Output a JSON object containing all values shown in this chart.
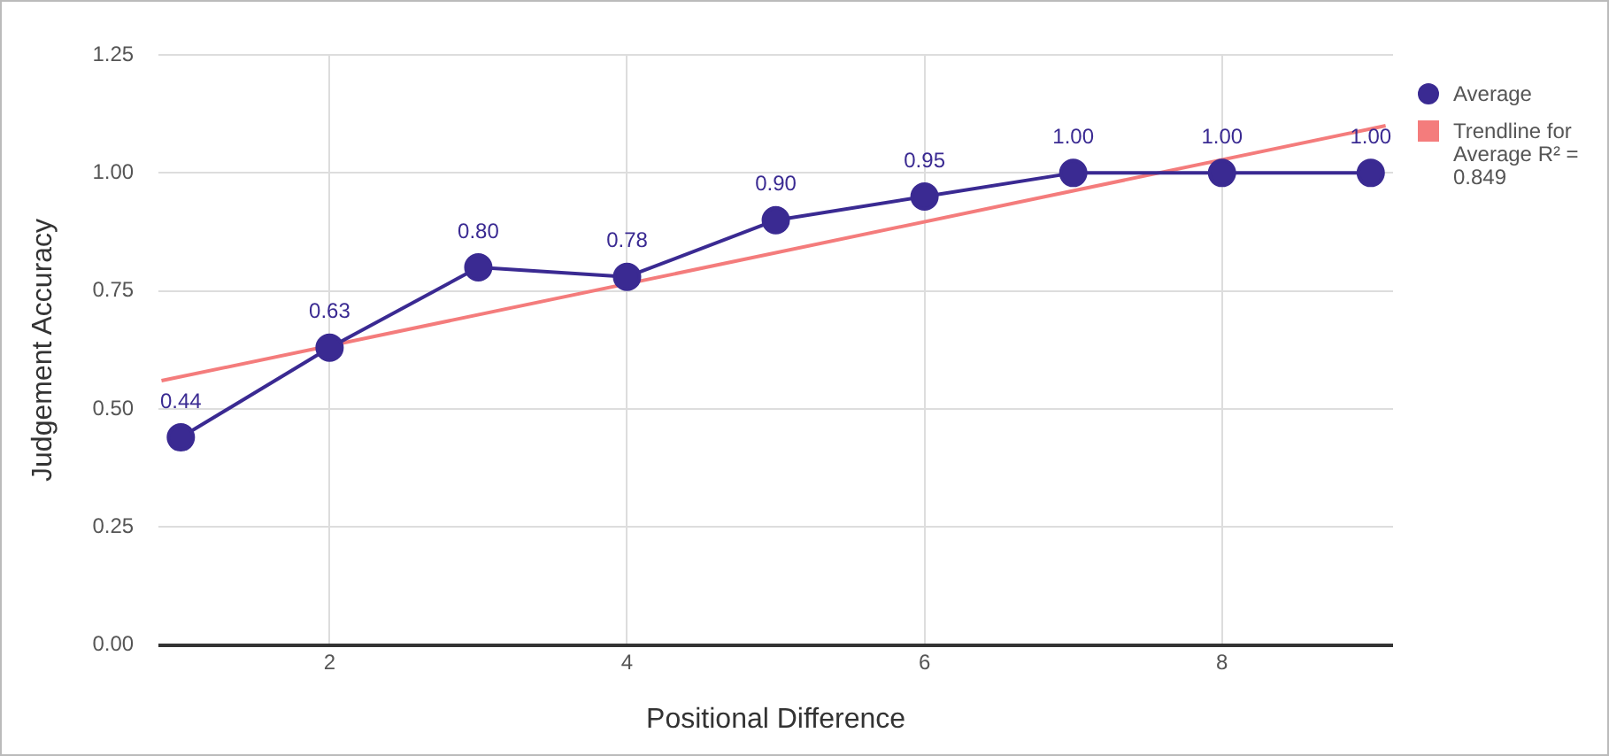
{
  "chart_data": {
    "type": "line",
    "xlabel": "Positional Difference",
    "ylabel": "Judgement Accuracy",
    "xlim": [
      0.85,
      9.15
    ],
    "xticks": [
      2,
      4,
      6,
      8
    ],
    "ylim": [
      0,
      1.25
    ],
    "yticks": [
      {
        "value": 0,
        "label": "0.00"
      },
      {
        "value": 0.25,
        "label": "0.25"
      },
      {
        "value": 0.5,
        "label": "0.50"
      },
      {
        "value": 0.75,
        "label": "0.75"
      },
      {
        "value": 1,
        "label": "1.00"
      },
      {
        "value": 1.25,
        "label": "1.25"
      }
    ],
    "grid": true,
    "legend": "top right",
    "marker": "circle",
    "series": [
      {
        "name": "Average",
        "color": "#3a2a92",
        "x": [
          1,
          2,
          3,
          4,
          5,
          6,
          7,
          8,
          9
        ],
        "values": [
          0.44,
          0.63,
          0.8,
          0.78,
          0.9,
          0.95,
          1.0,
          1.0,
          1.0
        ],
        "value_labels": [
          "0.44",
          "0.63",
          "0.80",
          "0.78",
          "0.90",
          "0.95",
          "1.00",
          "1.00",
          "1.00"
        ]
      },
      {
        "name": "Trendline for Average R² = 0.849",
        "color": "#f47c7c",
        "marker": "none",
        "x": [
          0.87,
          9.1
        ],
        "values": [
          0.56,
          1.1
        ]
      }
    ]
  }
}
